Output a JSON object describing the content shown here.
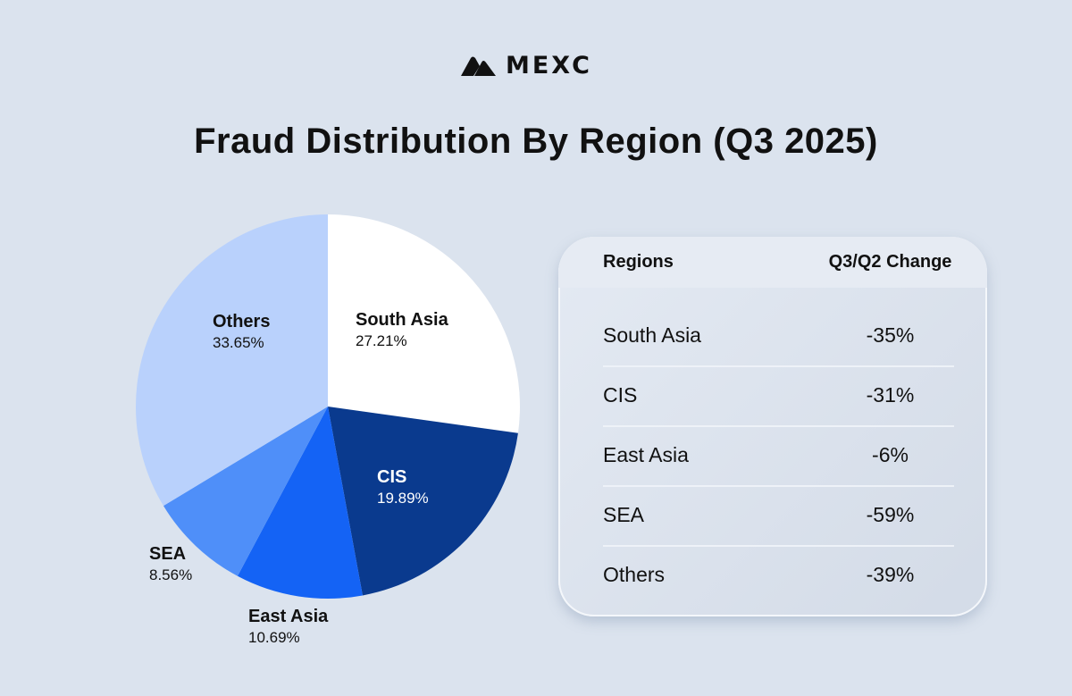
{
  "brand": {
    "name": "MEXC"
  },
  "title": "Fraud Distribution By Region (Q3 2025)",
  "chart_data": {
    "type": "pie",
    "title": "Fraud Distribution By Region (Q3 2025)",
    "start_angle": "12 o'clock, clockwise",
    "categories": [
      "South Asia",
      "CIS",
      "East Asia",
      "SEA",
      "Others"
    ],
    "values": [
      27.21,
      19.89,
      10.69,
      8.56,
      33.65
    ],
    "labels": [
      "27.21%",
      "19.89%",
      "10.69%",
      "8.56%",
      "33.65%"
    ],
    "colors": [
      "#ffffff",
      "#0a3a8e",
      "#1463f5",
      "#4f8ff9",
      "#b9d1fc"
    ]
  },
  "table": {
    "headers": [
      "Regions",
      "Q3/Q2 Change"
    ],
    "rows": [
      [
        "South Asia",
        "-35%"
      ],
      [
        "CIS",
        "-31%"
      ],
      [
        "East Asia",
        "-6%"
      ],
      [
        "SEA",
        "-59%"
      ],
      [
        "Others",
        "-39%"
      ]
    ]
  }
}
